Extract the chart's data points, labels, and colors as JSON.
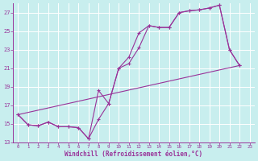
{
  "bg_color": "#c8eeee",
  "grid_color": "#aadddd",
  "line_color": "#993399",
  "xlabel": "Windchill (Refroidissement éolien,°C)",
  "xlim": [
    0,
    23
  ],
  "ylim": [
    13,
    28
  ],
  "xticks": [
    0,
    1,
    2,
    3,
    4,
    5,
    6,
    7,
    8,
    9,
    10,
    11,
    12,
    13,
    14,
    15,
    16,
    17,
    18,
    19,
    20,
    21,
    22,
    23
  ],
  "yticks": [
    13,
    15,
    17,
    19,
    21,
    23,
    25,
    27
  ],
  "line1_x": [
    0,
    1,
    2,
    3,
    4,
    5,
    6,
    7,
    8,
    9,
    10,
    11,
    12,
    13,
    14,
    15,
    16,
    17,
    18,
    19,
    20,
    21,
    22
  ],
  "line1_y": [
    16.0,
    14.9,
    14.8,
    15.2,
    14.7,
    14.7,
    14.6,
    13.4,
    18.6,
    17.2,
    21.0,
    22.2,
    24.8,
    25.6,
    25.4,
    25.4,
    27.0,
    27.2,
    27.3,
    27.5,
    27.8,
    23.0,
    21.3
  ],
  "line2_x": [
    0,
    1,
    2,
    3,
    4,
    5,
    6,
    7,
    8,
    9,
    10,
    11,
    12,
    13,
    14,
    15,
    16,
    17,
    18,
    19,
    20,
    21,
    22
  ],
  "line2_y": [
    16.0,
    14.9,
    14.8,
    15.2,
    14.7,
    14.7,
    14.6,
    13.4,
    15.5,
    17.2,
    21.0,
    21.5,
    23.2,
    25.6,
    25.4,
    25.4,
    27.0,
    27.2,
    27.3,
    27.5,
    27.8,
    23.0,
    21.3
  ],
  "line3_x": [
    0,
    22
  ],
  "line3_y": [
    16.0,
    21.3
  ]
}
